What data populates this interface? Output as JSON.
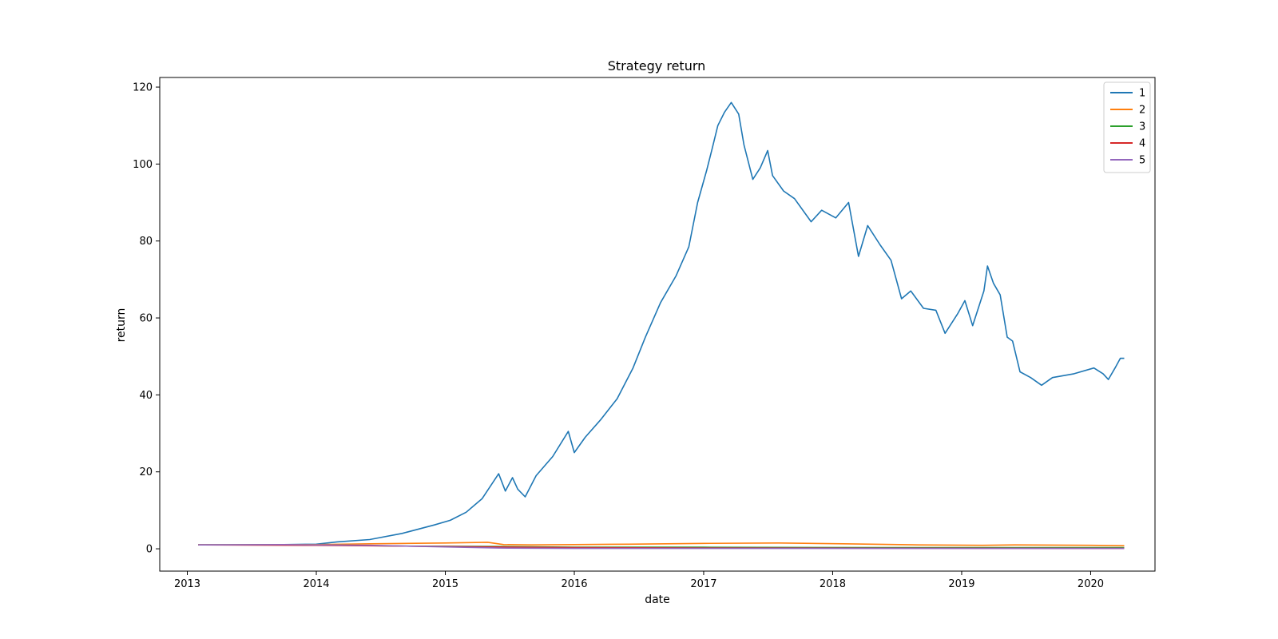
{
  "chart_data": {
    "type": "line",
    "title": "Strategy return",
    "xlabel": "date",
    "ylabel": "return",
    "xlim": [
      "2012-10-15",
      "2020-07-01"
    ],
    "ylim": [
      -5.8,
      122.5
    ],
    "x_ticks": [
      "2013",
      "2014",
      "2015",
      "2016",
      "2017",
      "2018",
      "2019",
      "2020"
    ],
    "y_ticks": [
      0,
      20,
      40,
      60,
      80,
      100,
      120
    ],
    "grid": false,
    "legend_position": "top-right",
    "series": [
      {
        "name": "1",
        "color": "#1f77b4",
        "points": [
          [
            "2013-02-01",
            1.0
          ],
          [
            "2013-06-01",
            1.0
          ],
          [
            "2013-10-01",
            1.1
          ],
          [
            "2014-01-01",
            1.2
          ],
          [
            "2014-03-01",
            1.8
          ],
          [
            "2014-06-01",
            2.4
          ],
          [
            "2014-09-01",
            4.0
          ],
          [
            "2014-12-01",
            6.2
          ],
          [
            "2015-01-15",
            7.4
          ],
          [
            "2015-03-01",
            9.5
          ],
          [
            "2015-04-15",
            13.0
          ],
          [
            "2015-06-01",
            19.5
          ],
          [
            "2015-06-20",
            15.0
          ],
          [
            "2015-07-10",
            18.5
          ],
          [
            "2015-07-25",
            15.5
          ],
          [
            "2015-08-15",
            13.5
          ],
          [
            "2015-09-15",
            19.0
          ],
          [
            "2015-11-01",
            24.0
          ],
          [
            "2015-12-15",
            30.5
          ],
          [
            "2016-01-01",
            25.0
          ],
          [
            "2016-02-01",
            29.0
          ],
          [
            "2016-03-15",
            33.5
          ],
          [
            "2016-05-01",
            39.0
          ],
          [
            "2016-06-15",
            47.0
          ],
          [
            "2016-07-20",
            55.0
          ],
          [
            "2016-09-01",
            64.0
          ],
          [
            "2016-10-15",
            71.0
          ],
          [
            "2016-11-20",
            78.5
          ],
          [
            "2016-12-15",
            90.0
          ],
          [
            "2017-01-10",
            98.5
          ],
          [
            "2017-01-25",
            104.0
          ],
          [
            "2017-02-10",
            110.0
          ],
          [
            "2017-03-01",
            113.5
          ],
          [
            "2017-03-20",
            116.0
          ],
          [
            "2017-04-10",
            113.0
          ],
          [
            "2017-04-25",
            105.0
          ],
          [
            "2017-05-20",
            96.0
          ],
          [
            "2017-06-10",
            99.0
          ],
          [
            "2017-07-01",
            103.5
          ],
          [
            "2017-07-15",
            97.0
          ],
          [
            "2017-08-15",
            93.0
          ],
          [
            "2017-09-15",
            91.0
          ],
          [
            "2017-11-01",
            85.0
          ],
          [
            "2017-12-01",
            88.0
          ],
          [
            "2018-01-10",
            86.0
          ],
          [
            "2018-02-15",
            90.0
          ],
          [
            "2018-03-15",
            76.0
          ],
          [
            "2018-04-10",
            84.0
          ],
          [
            "2018-05-15",
            79.0
          ],
          [
            "2018-06-15",
            75.0
          ],
          [
            "2018-07-15",
            65.0
          ],
          [
            "2018-08-10",
            67.0
          ],
          [
            "2018-09-15",
            62.5
          ],
          [
            "2018-10-20",
            62.0
          ],
          [
            "2018-11-15",
            56.0
          ],
          [
            "2018-12-20",
            61.0
          ],
          [
            "2019-01-10",
            64.5
          ],
          [
            "2019-02-01",
            58.0
          ],
          [
            "2019-03-05",
            67.0
          ],
          [
            "2019-03-15",
            73.5
          ],
          [
            "2019-04-01",
            69.0
          ],
          [
            "2019-04-20",
            66.0
          ],
          [
            "2019-05-10",
            55.0
          ],
          [
            "2019-05-25",
            54.0
          ],
          [
            "2019-06-15",
            46.0
          ],
          [
            "2019-07-15",
            44.5
          ],
          [
            "2019-08-15",
            42.5
          ],
          [
            "2019-09-15",
            44.5
          ],
          [
            "2019-11-15",
            45.5
          ],
          [
            "2020-01-10",
            47.0
          ],
          [
            "2020-02-05",
            45.5
          ],
          [
            "2020-02-20",
            44.0
          ],
          [
            "2020-03-10",
            47.0
          ],
          [
            "2020-03-25",
            49.5
          ],
          [
            "2020-04-05",
            49.5
          ]
        ]
      },
      {
        "name": "2",
        "color": "#ff7f0e",
        "points": [
          [
            "2013-02-01",
            1.0
          ],
          [
            "2014-01-01",
            1.1
          ],
          [
            "2014-06-01",
            1.3
          ],
          [
            "2015-01-01",
            1.5
          ],
          [
            "2015-05-01",
            1.7
          ],
          [
            "2015-06-15",
            1.1
          ],
          [
            "2015-09-01",
            1.0
          ],
          [
            "2016-01-01",
            1.1
          ],
          [
            "2016-06-01",
            1.2
          ],
          [
            "2017-01-01",
            1.4
          ],
          [
            "2017-08-01",
            1.5
          ],
          [
            "2018-02-01",
            1.3
          ],
          [
            "2018-09-01",
            1.0
          ],
          [
            "2019-03-01",
            0.9
          ],
          [
            "2019-06-01",
            1.0
          ],
          [
            "2020-01-01",
            0.9
          ],
          [
            "2020-04-05",
            0.8
          ]
        ]
      },
      {
        "name": "3",
        "color": "#2ca02c",
        "points": [
          [
            "2013-02-01",
            1.0
          ],
          [
            "2014-01-01",
            1.0
          ],
          [
            "2014-09-01",
            0.7
          ],
          [
            "2015-06-01",
            0.6
          ],
          [
            "2016-01-01",
            0.4
          ],
          [
            "2017-01-01",
            0.4
          ],
          [
            "2018-06-01",
            0.3
          ],
          [
            "2020-04-05",
            0.3
          ]
        ]
      },
      {
        "name": "4",
        "color": "#d62728",
        "points": [
          [
            "2013-02-01",
            1.0
          ],
          [
            "2014-01-01",
            0.9
          ],
          [
            "2015-01-01",
            0.6
          ],
          [
            "2016-01-01",
            0.3
          ],
          [
            "2017-01-01",
            0.2
          ],
          [
            "2018-06-01",
            0.15
          ],
          [
            "2020-04-05",
            0.1
          ]
        ]
      },
      {
        "name": "5",
        "color": "#9467bd",
        "points": [
          [
            "2013-02-01",
            1.0
          ],
          [
            "2013-10-01",
            1.1
          ],
          [
            "2014-06-01",
            0.9
          ],
          [
            "2015-01-01",
            0.5
          ],
          [
            "2015-06-01",
            0.2
          ],
          [
            "2016-01-01",
            0.1
          ],
          [
            "2017-01-01",
            0.1
          ],
          [
            "2020-04-05",
            0.1
          ]
        ]
      }
    ]
  }
}
